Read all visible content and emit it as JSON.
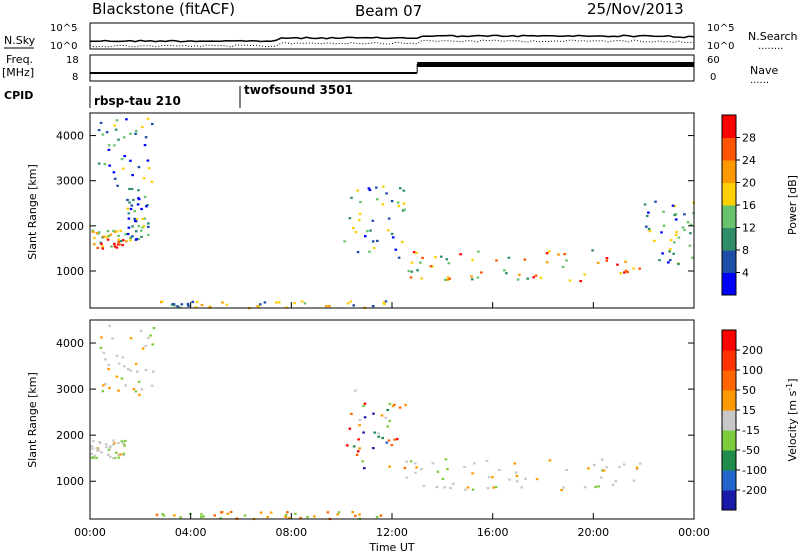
{
  "header": {
    "station": "Blackstone (fitACF)",
    "beam": "Beam 07",
    "date": "25/Nov/2013"
  },
  "side_labels": {
    "nsky": "N.Sky",
    "freq_line1": "Freq.",
    "freq_line2": "[MHz]",
    "cpid": "CPID",
    "nsearch": "N.Search",
    "nave": "Nave"
  },
  "noise_panel": {
    "left_ticks": [
      "10^5",
      "10^0"
    ],
    "right_ticks": [
      "10^5",
      "10^0"
    ]
  },
  "freq_panel": {
    "left_ticks": [
      "18",
      "8"
    ],
    "right_ticks": [
      "60",
      "0"
    ]
  },
  "cpid_panel": {
    "segments": [
      {
        "label": "rbsp-tau 210",
        "start_hour": 0
      },
      {
        "label": "twofsound 3501",
        "start_hour": 6
      }
    ]
  },
  "colorbars": {
    "power": {
      "label": "Power [dB]",
      "ticks": [
        "28",
        "24",
        "20",
        "16",
        "12",
        "8",
        "4"
      ],
      "colors": [
        "#0000ff",
        "#1c4ea8",
        "#2f8d6a",
        "#66c36b",
        "#ffd000",
        "#ff9900",
        "#ff5500",
        "#ff0000"
      ]
    },
    "velocity": {
      "label": "Velocity [m s",
      "label_sup": "-1",
      "label_close": "]",
      "ticks": [
        "200",
        "100",
        "50",
        "15",
        "-15",
        "-50",
        "-100",
        "-200"
      ],
      "colors": [
        "#1a1aa8",
        "#2266cc",
        "#1f8c4c",
        "#7ccc3c",
        "#c8c8c8",
        "#ff9900",
        "#ff6600",
        "#ff3300",
        "#ff0000"
      ]
    }
  },
  "chart_data": [
    {
      "type": "heatmap",
      "title": "Power",
      "ylabel": "Slant Range [km]",
      "xlabel": "Time UT",
      "x_ticks": [
        "00:00",
        "04:00",
        "08:00",
        "12:00",
        "16:00",
        "20:00",
        "00:00"
      ],
      "y_ticks": [
        1000,
        2000,
        3000,
        4000
      ],
      "xlim_hours": [
        0,
        24
      ],
      "ylim_km": [
        180,
        4500
      ],
      "scatter_regions": [
        {
          "t0": 0.0,
          "t1": 1.4,
          "r0": 1520,
          "r1": 1920,
          "value": "high"
        },
        {
          "t0": 1.4,
          "t1": 2.3,
          "r0": 1700,
          "r1": 2700,
          "value": "medium"
        },
        {
          "t0": 0.3,
          "t1": 2.5,
          "r0": 2800,
          "r1": 4400,
          "value": "medium"
        },
        {
          "t0": 10.0,
          "t1": 12.5,
          "r0": 1300,
          "r1": 3000,
          "value": "medium"
        },
        {
          "t0": 12.5,
          "t1": 22.0,
          "r0": 800,
          "r1": 1500,
          "value": "high"
        },
        {
          "t0": 22.0,
          "t1": 24.0,
          "r0": 1100,
          "r1": 2600,
          "value": "medium"
        },
        {
          "t0": 2.5,
          "t1": 12.0,
          "r0": 200,
          "r1": 360,
          "value": "low"
        }
      ]
    },
    {
      "type": "heatmap",
      "title": "Velocity",
      "ylabel": "Slant Range [km]",
      "xlabel": "Time UT",
      "x_ticks": [
        "00:00",
        "04:00",
        "08:00",
        "12:00",
        "16:00",
        "20:00",
        "00:00"
      ],
      "y_ticks": [
        1000,
        2000,
        3000,
        4000
      ],
      "xlim_hours": [
        0,
        24
      ],
      "ylim_km": [
        180,
        4500
      ],
      "scatter_regions": [
        {
          "t0": 0.0,
          "t1": 1.4,
          "r0": 1520,
          "r1": 1920,
          "value": "ground"
        },
        {
          "t0": 0.3,
          "t1": 2.5,
          "r0": 2800,
          "r1": 4400,
          "value": "ground"
        },
        {
          "t0": 10.0,
          "t1": 12.5,
          "r0": 1300,
          "r1": 3000,
          "value": "mixed"
        },
        {
          "t0": 12.5,
          "t1": 22.0,
          "r0": 800,
          "r1": 1500,
          "value": "ground"
        },
        {
          "t0": 2.5,
          "t1": 12.0,
          "r0": 200,
          "r1": 360,
          "value": "negative"
        }
      ]
    }
  ],
  "xlabel": "Time UT"
}
